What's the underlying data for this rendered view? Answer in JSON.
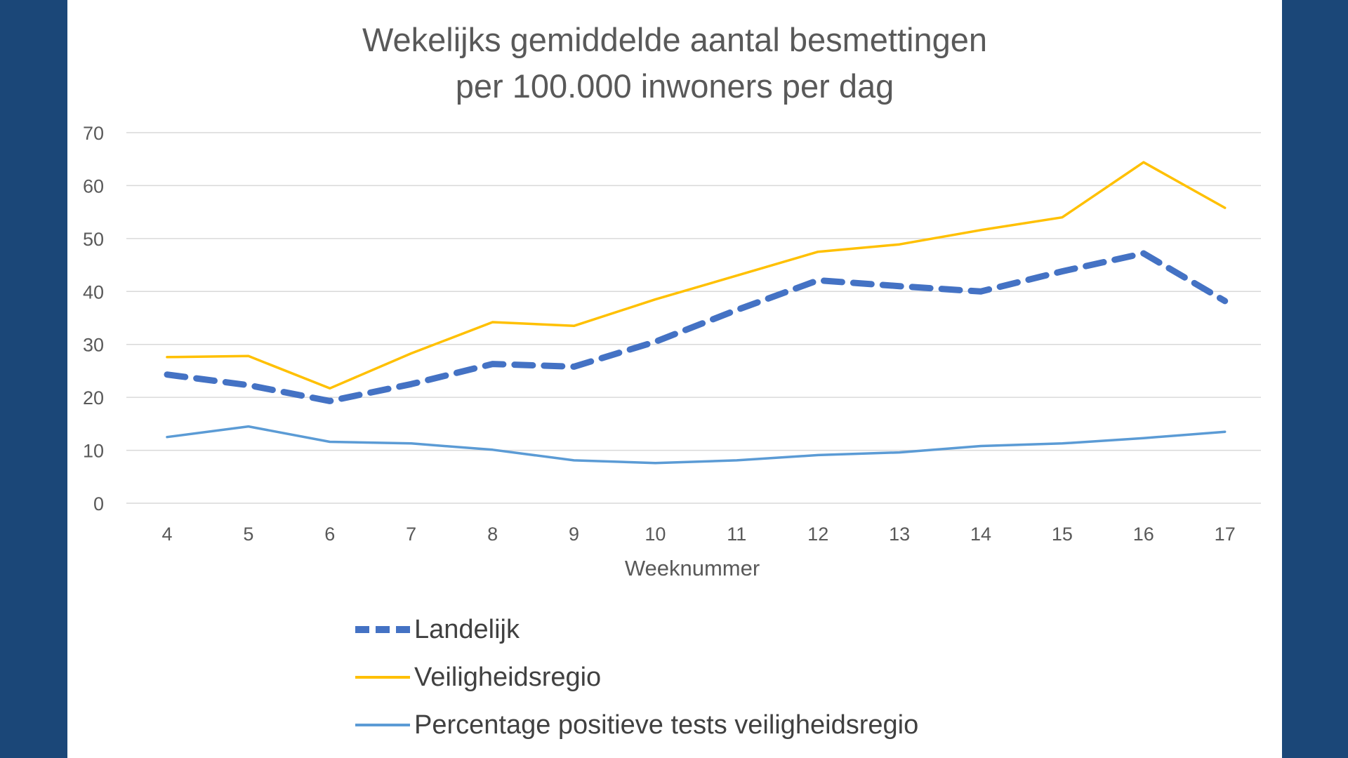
{
  "chart_data": {
    "type": "line",
    "title_lines": [
      "Wekelijks gemiddelde aantal besmettingen",
      "per 100.000 inwoners per dag"
    ],
    "xlabel": "Weeknummer",
    "ylabel": "",
    "categories": [
      "4",
      "5",
      "6",
      "7",
      "8",
      "9",
      "10",
      "11",
      "12",
      "13",
      "14",
      "15",
      "16",
      "17"
    ],
    "yticks": [
      "0",
      "10",
      "20",
      "30",
      "40",
      "50",
      "60",
      "70"
    ],
    "ylim": [
      0,
      70
    ],
    "grid": true,
    "legend_position": "bottom",
    "series": [
      {
        "name": "Landelijk",
        "style": "dashed",
        "color": "#4472c4",
        "values": [
          24.3,
          22.3,
          19.3,
          22.5,
          26.3,
          25.8,
          30.5,
          36.5,
          42.1,
          41.0,
          40.0,
          43.8,
          47.2,
          38.2
        ]
      },
      {
        "name": "Veiligheidsregio",
        "style": "solid",
        "color": "#ffc000",
        "values": [
          27.6,
          27.8,
          21.7,
          28.3,
          34.2,
          33.5,
          38.5,
          43.0,
          47.5,
          48.9,
          51.6,
          54.0,
          64.4,
          55.8
        ]
      },
      {
        "name": "Percentage positieve tests veiligheidsregio",
        "style": "solid",
        "color": "#5b9bd5",
        "values": [
          12.5,
          14.5,
          11.6,
          11.3,
          10.1,
          8.1,
          7.6,
          8.1,
          9.1,
          9.6,
          10.8,
          11.3,
          12.3,
          13.5
        ]
      }
    ]
  }
}
